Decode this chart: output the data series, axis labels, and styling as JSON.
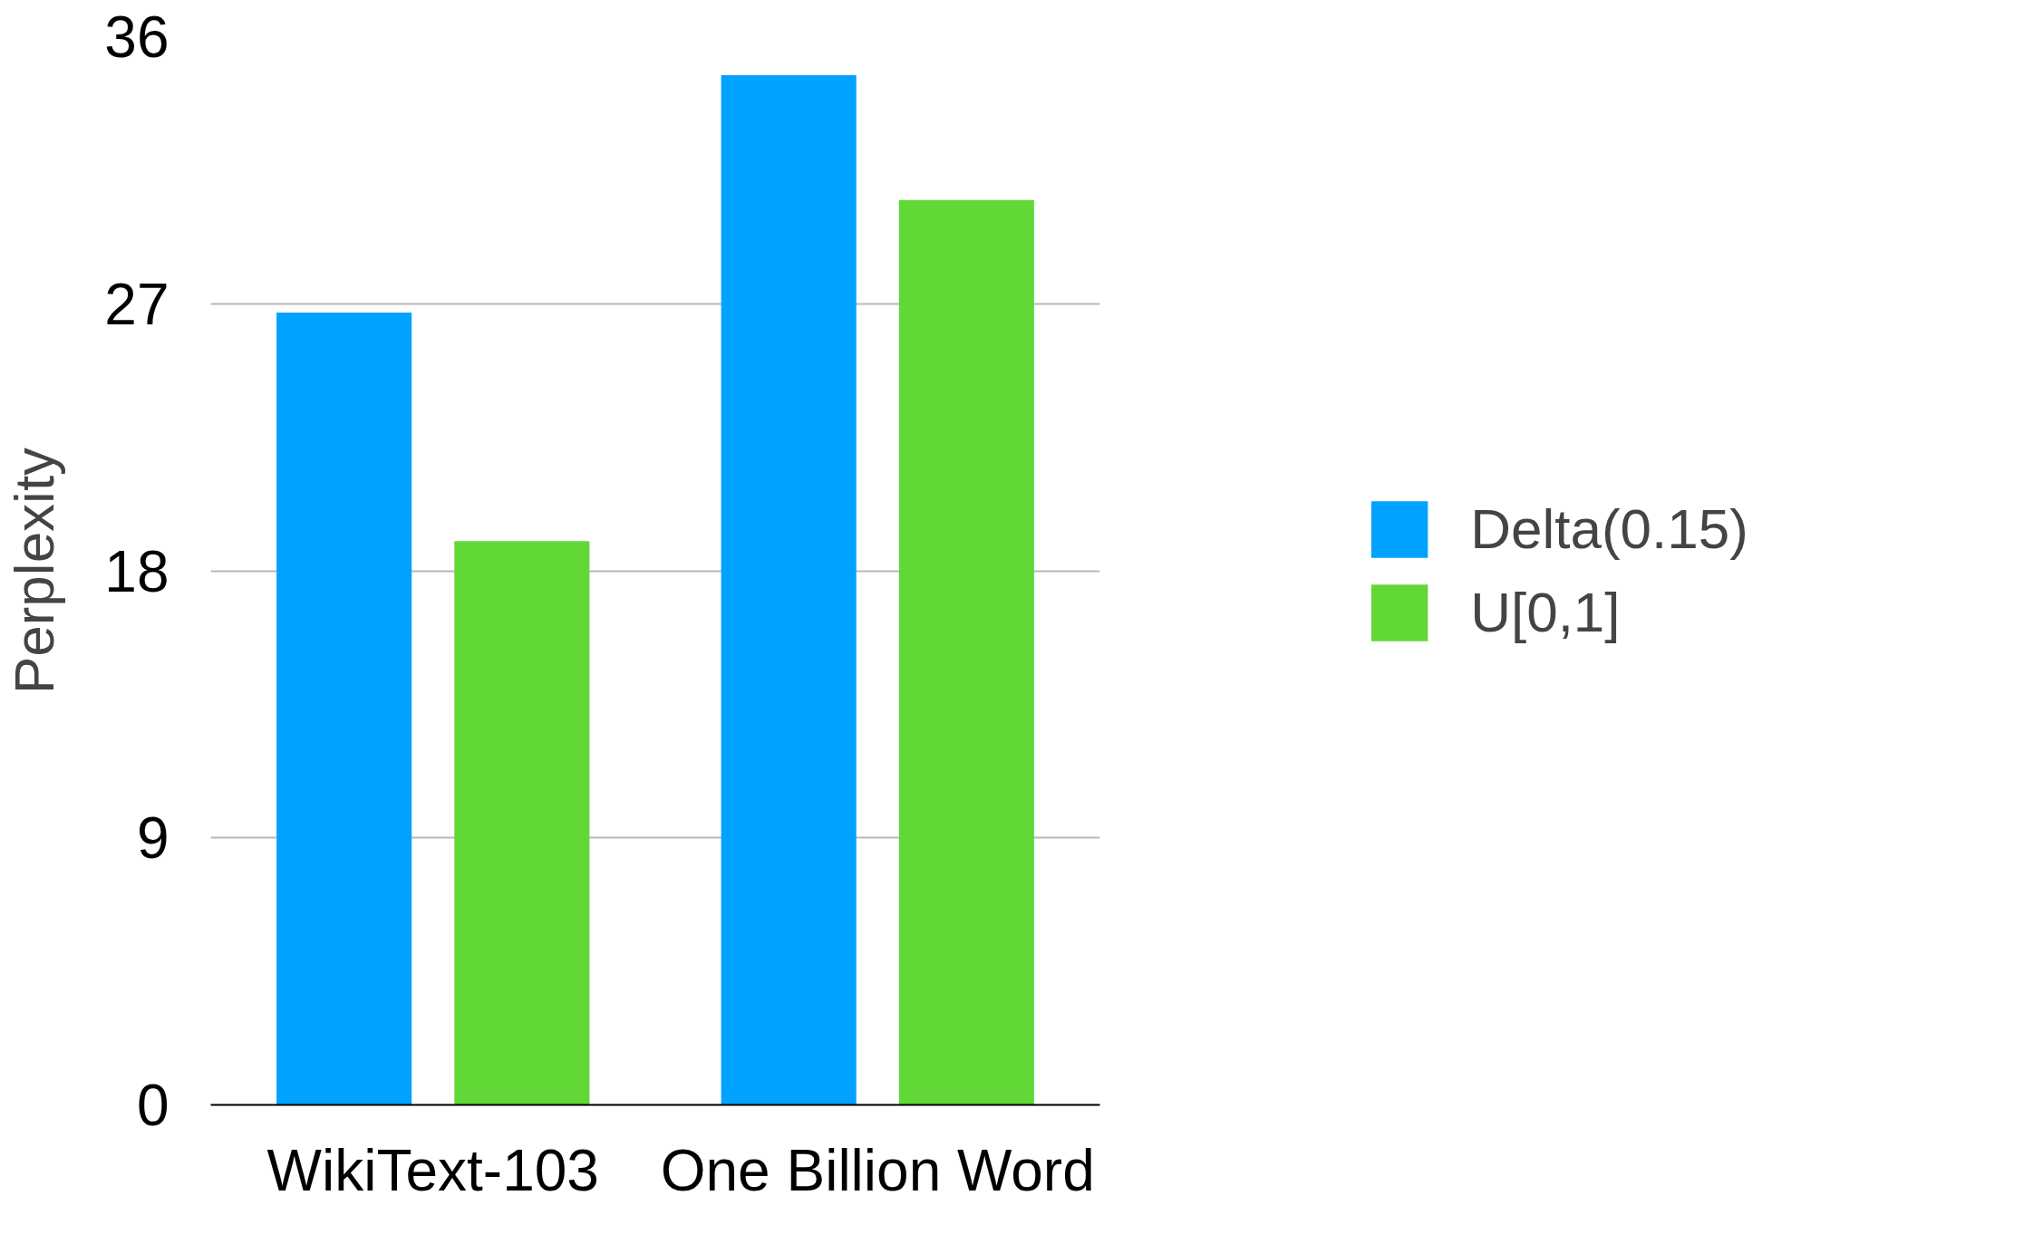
{
  "chart_data": {
    "type": "bar",
    "ylabel": "Perplexity",
    "categories": [
      "WikiText-103",
      "One Billion Word"
    ],
    "series": [
      {
        "name": "Delta(0.15)",
        "color": "#00a2ff",
        "values": [
          26.7,
          34.7
        ]
      },
      {
        "name": "U[0,1]",
        "color": "#61d836",
        "values": [
          19.0,
          30.5
        ]
      }
    ],
    "ylim": [
      0,
      36
    ],
    "yticks": [
      0,
      9,
      18,
      27,
      36
    ],
    "grid": "y",
    "legend": "right"
  }
}
